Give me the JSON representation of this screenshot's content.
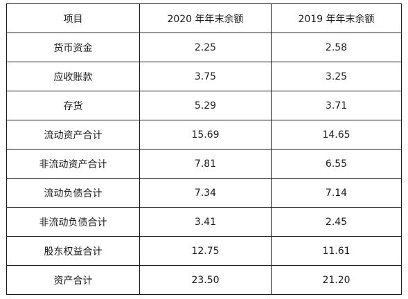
{
  "table": {
    "headers": [
      "项目",
      "2020 年年末余额",
      "2019 年年末余额"
    ],
    "rows": [
      [
        "货币资金",
        "2.25",
        "2.58"
      ],
      [
        "应收账款",
        "3.75",
        "3.25"
      ],
      [
        "存货",
        "5.29",
        "3.71"
      ],
      [
        "流动资产合计",
        "15.69",
        "14.65"
      ],
      [
        "非流动资产合计",
        "7.81",
        "6.55"
      ],
      [
        "流动负债合计",
        "7.34",
        "7.14"
      ],
      [
        "非流动负债合计",
        "3.41",
        "2.45"
      ],
      [
        "股东权益合计",
        "12.75",
        "11.61"
      ],
      [
        "资产合计",
        "23.50",
        "21.20"
      ]
    ]
  }
}
